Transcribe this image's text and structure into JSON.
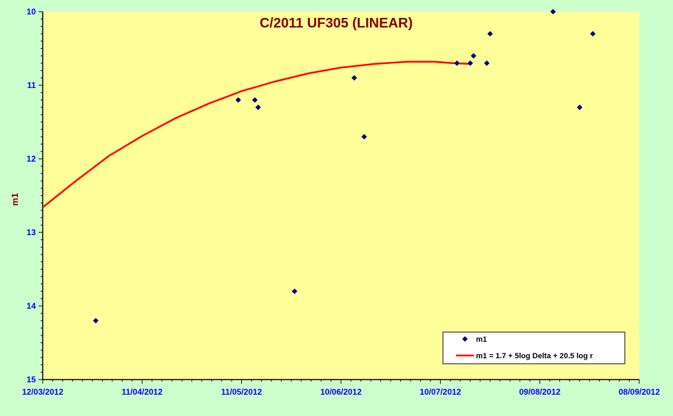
{
  "chart_data": {
    "type": "scatter",
    "title": "C/2011 UF305 (LINEAR)",
    "xlabel": "",
    "ylabel": "m1",
    "y_inverted": true,
    "ylim": [
      10,
      15
    ],
    "xlim": [
      "2012-03-12",
      "2012-09-08"
    ],
    "x_ticks": [
      "12/03/2012",
      "11/04/2012",
      "11/05/2012",
      "10/06/2012",
      "10/07/2012",
      "09/08/2012",
      "08/09/2012"
    ],
    "y_ticks": [
      "10",
      "11",
      "12",
      "13",
      "14",
      "15"
    ],
    "grid": false,
    "legend_position": "bottom-right",
    "colors": {
      "plot_bg": "#ffff99",
      "page_bg": "#ccffcc",
      "title": "#800000",
      "tick_labels": "#0000ff",
      "ylabel": "#800000",
      "points": "#000080",
      "model_line": "#ff0000"
    },
    "series": [
      {
        "name": "m1",
        "kind": "scatter",
        "points": [
          {
            "x": "2012-03-28",
            "y": 14.2
          },
          {
            "x": "2012-05-10",
            "y": 11.2
          },
          {
            "x": "2012-05-15",
            "y": 11.2
          },
          {
            "x": "2012-05-16",
            "y": 11.3
          },
          {
            "x": "2012-05-27",
            "y": 13.8
          },
          {
            "x": "2012-06-14",
            "y": 10.9
          },
          {
            "x": "2012-06-17",
            "y": 11.7
          },
          {
            "x": "2012-07-15",
            "y": 10.7
          },
          {
            "x": "2012-07-19",
            "y": 10.7
          },
          {
            "x": "2012-07-20",
            "y": 10.6
          },
          {
            "x": "2012-07-24",
            "y": 10.7
          },
          {
            "x": "2012-07-25",
            "y": 10.3
          },
          {
            "x": "2012-08-13",
            "y": 10.0
          },
          {
            "x": "2012-08-21",
            "y": 11.3
          },
          {
            "x": "2012-08-25",
            "y": 10.3
          }
        ]
      },
      {
        "name": "m1 = 1.7 + 5log Delta + 20.5 log r",
        "kind": "line",
        "points": [
          {
            "x": "2012-03-12",
            "y": 12.66
          },
          {
            "x": "2012-03-22",
            "y": 12.3
          },
          {
            "x": "2012-04-01",
            "y": 11.96
          },
          {
            "x": "2012-04-11",
            "y": 11.69
          },
          {
            "x": "2012-04-21",
            "y": 11.45
          },
          {
            "x": "2012-05-01",
            "y": 11.25
          },
          {
            "x": "2012-05-11",
            "y": 11.08
          },
          {
            "x": "2012-05-21",
            "y": 10.95
          },
          {
            "x": "2012-05-31",
            "y": 10.84
          },
          {
            "x": "2012-06-10",
            "y": 10.76
          },
          {
            "x": "2012-06-20",
            "y": 10.71
          },
          {
            "x": "2012-06-30",
            "y": 10.68
          },
          {
            "x": "2012-07-08",
            "y": 10.68
          },
          {
            "x": "2012-07-14",
            "y": 10.7
          },
          {
            "x": "2012-07-19",
            "y": 10.71
          }
        ]
      }
    ]
  }
}
